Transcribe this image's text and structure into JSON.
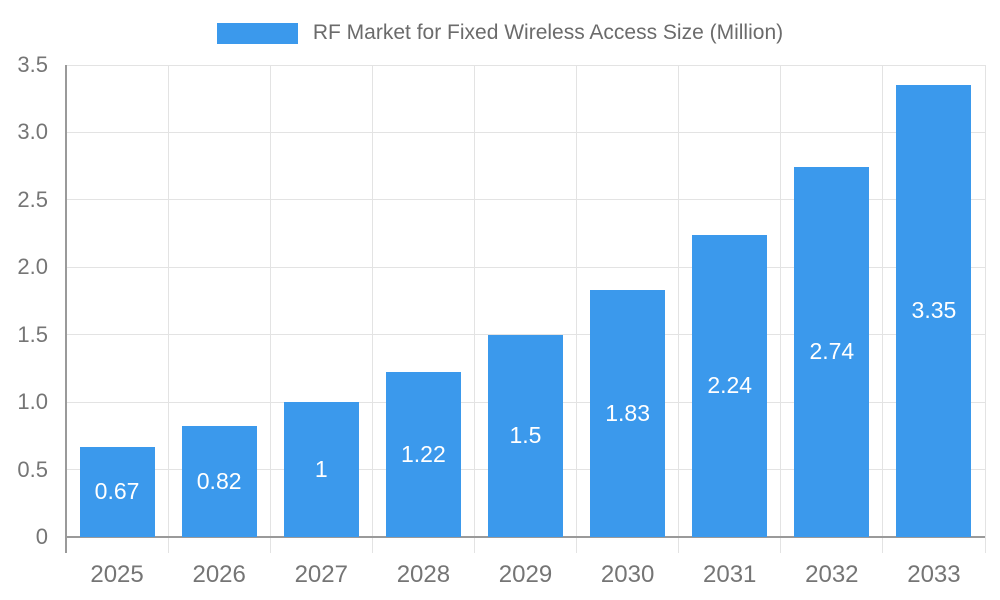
{
  "legend": {
    "label": "RF Market for Fixed Wireless Access Size (Million)"
  },
  "chart_data": {
    "type": "bar",
    "title": "RF Market for Fixed Wireless Access Size (Million)",
    "categories": [
      "2025",
      "2026",
      "2027",
      "2028",
      "2029",
      "2030",
      "2031",
      "2032",
      "2033"
    ],
    "values": [
      0.67,
      0.82,
      1,
      1.22,
      1.5,
      1.83,
      2.24,
      2.74,
      3.35
    ],
    "bar_labels": [
      "0.67",
      "0.82",
      "1",
      "1.22",
      "1.5",
      "1.83",
      "2.24",
      "2.74",
      "3.35"
    ],
    "xlabel": "",
    "ylabel": "",
    "ylim": [
      0,
      3.5
    ],
    "yticks": [
      0,
      0.5,
      1,
      1.5,
      2,
      2.5,
      3,
      3.5
    ],
    "ytick_labels": [
      "0",
      "0.5",
      "1.0",
      "1.5",
      "2.0",
      "2.5",
      "3.0",
      "3.5"
    ],
    "grid": true,
    "legend_position": "top",
    "colors": {
      "bar": "#3B99EC",
      "grid": "#e3e3e3",
      "axis": "#9a9a9a",
      "tick_text": "#757575",
      "bar_label_text": "#ffffff",
      "legend_text": "#6b6b6b"
    }
  }
}
